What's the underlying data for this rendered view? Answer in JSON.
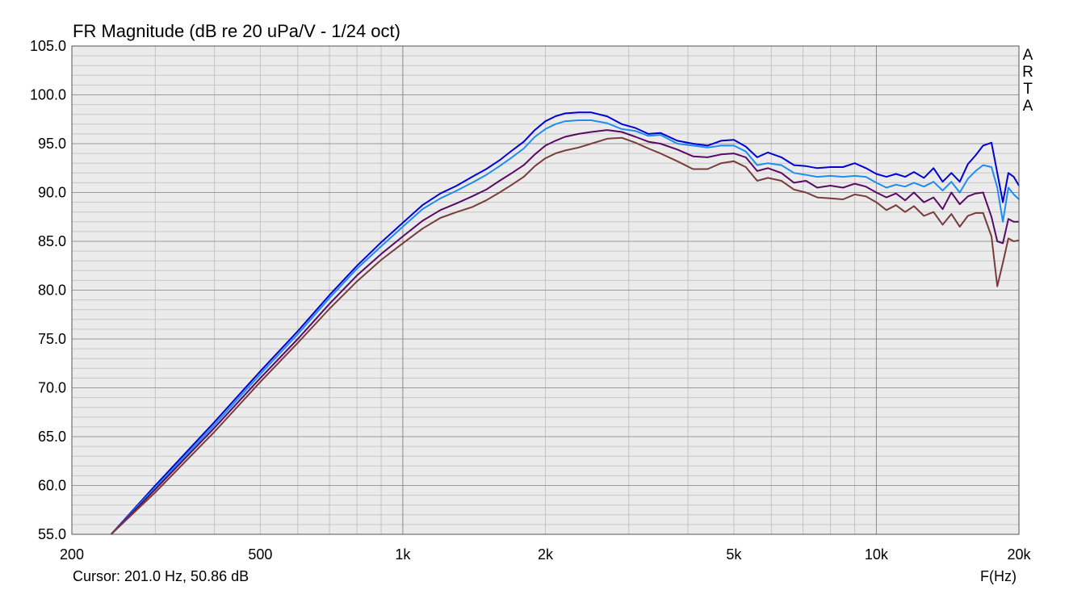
{
  "brand": [
    "A",
    "R",
    "T",
    "A"
  ],
  "cursor_readout": "Cursor: 201.0 Hz, 50.86 dB",
  "chart_data": {
    "type": "line",
    "title": "FR Magnitude (dB re 20 uPa/V - 1/24 oct)",
    "xlabel": "F(Hz)",
    "ylabel": "",
    "x_scale": "log",
    "xlim": [
      200,
      20000
    ],
    "ylim": [
      55,
      105
    ],
    "grid": true,
    "x_ticks": [
      {
        "value": 200,
        "label": "200"
      },
      {
        "value": 500,
        "label": "500"
      },
      {
        "value": 1000,
        "label": "1k"
      },
      {
        "value": 2000,
        "label": "2k"
      },
      {
        "value": 5000,
        "label": "5k"
      },
      {
        "value": 10000,
        "label": "10k"
      },
      {
        "value": 20000,
        "label": "20k"
      }
    ],
    "y_ticks": [
      {
        "value": 55,
        "label": "55.0"
      },
      {
        "value": 60,
        "label": "60.0"
      },
      {
        "value": 65,
        "label": "65.0"
      },
      {
        "value": 70,
        "label": "70.0"
      },
      {
        "value": 75,
        "label": "75.0"
      },
      {
        "value": 80,
        "label": "80.0"
      },
      {
        "value": 85,
        "label": "85.0"
      },
      {
        "value": 90,
        "label": "90.0"
      },
      {
        "value": 95,
        "label": "95.0"
      },
      {
        "value": 100,
        "label": "100.0"
      },
      {
        "value": 105,
        "label": "105.0"
      }
    ],
    "series": [
      {
        "color": "#0000d2",
        "x": [
          242,
          300,
          400,
          500,
          600,
          700,
          800,
          900,
          1000,
          1100,
          1200,
          1300,
          1400,
          1500,
          1600,
          1700,
          1800,
          1900,
          2000,
          2100,
          2200,
          2350,
          2500,
          2700,
          2900,
          3100,
          3300,
          3500,
          3800,
          4100,
          4400,
          4700,
          5000,
          5300,
          5600,
          5900,
          6300,
          6700,
          7100,
          7500,
          8000,
          8500,
          9000,
          9500,
          10000,
          10500,
          11000,
          11500,
          12000,
          12600,
          13200,
          13800,
          14400,
          15000,
          15600,
          16200,
          16800,
          17500,
          18000,
          18500,
          19000,
          19500,
          20000
        ],
        "y": [
          55.0,
          60.0,
          66.5,
          71.7,
          75.8,
          79.5,
          82.5,
          84.9,
          86.9,
          88.7,
          89.9,
          90.7,
          91.6,
          92.4,
          93.3,
          94.3,
          95.2,
          96.4,
          97.3,
          97.8,
          98.1,
          98.2,
          98.2,
          97.8,
          97.0,
          96.6,
          96.0,
          96.1,
          95.3,
          95.0,
          94.8,
          95.3,
          95.4,
          94.7,
          93.6,
          94.1,
          93.6,
          92.8,
          92.7,
          92.5,
          92.6,
          92.6,
          93.0,
          92.5,
          91.9,
          91.6,
          91.9,
          91.6,
          92.1,
          91.5,
          92.5,
          91.1,
          92.0,
          91.1,
          92.9,
          93.8,
          94.8,
          95.1,
          92.0,
          89.0,
          92.0,
          91.6,
          90.7
        ]
      },
      {
        "color": "#1e8cf0",
        "x": [
          242,
          300,
          400,
          500,
          600,
          700,
          800,
          900,
          1000,
          1100,
          1200,
          1300,
          1400,
          1500,
          1600,
          1700,
          1800,
          1900,
          2000,
          2100,
          2200,
          2350,
          2500,
          2700,
          2900,
          3100,
          3300,
          3500,
          3800,
          4100,
          4400,
          4700,
          5000,
          5300,
          5600,
          5900,
          6300,
          6700,
          7100,
          7500,
          8000,
          8500,
          9000,
          9500,
          10000,
          10500,
          11000,
          11500,
          12000,
          12600,
          13200,
          13800,
          14400,
          15000,
          15600,
          16200,
          16800,
          17500,
          18000,
          18500,
          19000,
          19500,
          20000
        ],
        "y": [
          55.0,
          59.8,
          66.2,
          71.4,
          75.5,
          79.2,
          82.2,
          84.5,
          86.5,
          88.3,
          89.4,
          90.2,
          91.0,
          91.8,
          92.7,
          93.6,
          94.5,
          95.7,
          96.5,
          97.0,
          97.3,
          97.4,
          97.4,
          97.1,
          96.5,
          96.3,
          95.8,
          95.9,
          95.0,
          94.8,
          94.6,
          94.8,
          94.8,
          94.2,
          92.8,
          93.0,
          92.8,
          92.0,
          91.8,
          91.6,
          91.7,
          91.6,
          91.7,
          91.6,
          91.0,
          90.5,
          90.8,
          90.6,
          91.0,
          90.6,
          91.1,
          90.2,
          91.1,
          90.0,
          91.4,
          92.2,
          92.8,
          92.6,
          90.5,
          87.0,
          90.5,
          89.8,
          89.3
        ]
      },
      {
        "color": "#5a0a64",
        "x": [
          242,
          300,
          400,
          500,
          600,
          700,
          800,
          900,
          1000,
          1100,
          1200,
          1300,
          1400,
          1500,
          1600,
          1700,
          1800,
          1900,
          2000,
          2100,
          2200,
          2350,
          2500,
          2700,
          2900,
          3100,
          3300,
          3500,
          3800,
          4100,
          4400,
          4700,
          5000,
          5300,
          5600,
          5900,
          6300,
          6700,
          7100,
          7500,
          8000,
          8500,
          9000,
          9500,
          10000,
          10500,
          11000,
          11500,
          12000,
          12600,
          13200,
          13800,
          14400,
          15000,
          15600,
          16200,
          16800,
          17500,
          18000,
          18500,
          19000,
          19500,
          20000
        ],
        "y": [
          55.0,
          59.6,
          65.9,
          71.0,
          75.0,
          78.6,
          81.5,
          83.7,
          85.5,
          87.1,
          88.2,
          88.9,
          89.6,
          90.3,
          91.2,
          92.0,
          92.8,
          93.9,
          94.8,
          95.3,
          95.7,
          96.0,
          96.2,
          96.4,
          96.2,
          95.7,
          95.2,
          95.0,
          94.4,
          93.7,
          93.6,
          93.9,
          94.0,
          93.6,
          92.2,
          92.5,
          92.0,
          91.0,
          91.2,
          90.5,
          90.7,
          90.5,
          90.9,
          90.6,
          90.0,
          89.5,
          89.9,
          89.2,
          90.0,
          89.0,
          89.5,
          88.3,
          90.0,
          88.8,
          89.6,
          89.9,
          90.0,
          87.5,
          85.0,
          84.8,
          87.3,
          87.0,
          87.0
        ]
      },
      {
        "color": "#783c3c",
        "x": [
          242,
          300,
          400,
          500,
          600,
          700,
          800,
          900,
          1000,
          1100,
          1200,
          1300,
          1400,
          1500,
          1600,
          1700,
          1800,
          1900,
          2000,
          2100,
          2200,
          2350,
          2500,
          2700,
          2900,
          3100,
          3300,
          3500,
          3800,
          4100,
          4400,
          4700,
          5000,
          5300,
          5600,
          5900,
          6300,
          6700,
          7100,
          7500,
          8000,
          8500,
          9000,
          9500,
          10000,
          10500,
          11000,
          11500,
          12000,
          12600,
          13200,
          13800,
          14400,
          15000,
          15600,
          16200,
          16800,
          17500,
          18000,
          18500,
          19000,
          19500,
          20000
        ],
        "y": [
          55.0,
          59.3,
          65.5,
          70.6,
          74.6,
          78.1,
          80.9,
          83.1,
          84.8,
          86.3,
          87.4,
          88.0,
          88.5,
          89.2,
          90.0,
          90.8,
          91.6,
          92.7,
          93.5,
          94.0,
          94.3,
          94.6,
          95.0,
          95.5,
          95.6,
          95.1,
          94.5,
          94.0,
          93.2,
          92.4,
          92.4,
          93.0,
          93.2,
          92.6,
          91.2,
          91.5,
          91.2,
          90.3,
          90.0,
          89.5,
          89.4,
          89.3,
          89.8,
          89.6,
          89.0,
          88.2,
          88.7,
          88.0,
          88.6,
          87.6,
          88.0,
          86.7,
          87.8,
          86.5,
          87.6,
          87.9,
          87.9,
          85.5,
          80.4,
          82.8,
          85.3,
          85.0,
          85.1
        ]
      }
    ]
  }
}
